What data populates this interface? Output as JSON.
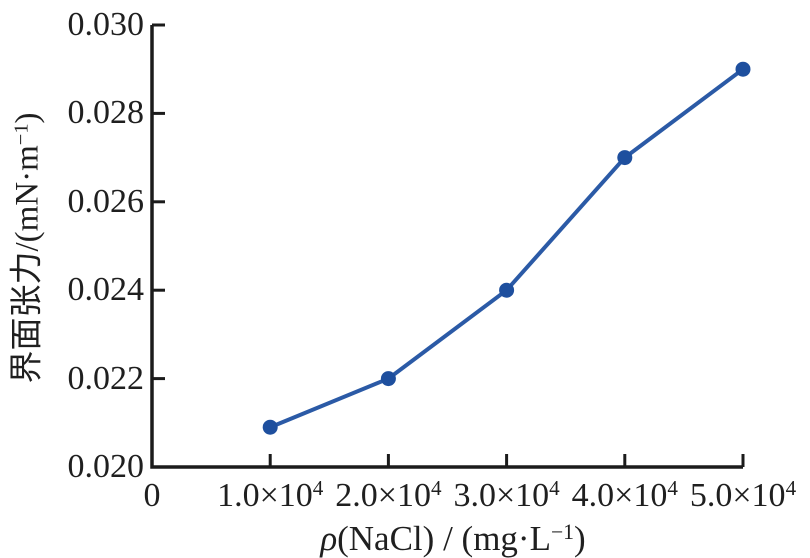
{
  "figure": {
    "background": "#ffffff"
  },
  "chart_data": {
    "type": "line",
    "title": "",
    "xlabel": "ρ(NaCl) / (mg·L⁻¹)",
    "ylabel": "界面张力/(mN·m⁻¹)",
    "x": [
      10000,
      20000,
      30000,
      40000,
      50000
    ],
    "y": [
      0.0209,
      0.022,
      0.024,
      0.027,
      0.029
    ],
    "xlim": [
      0,
      50000
    ],
    "ylim": [
      0.02,
      0.03
    ],
    "grid": false,
    "legend": "none",
    "marker": "circle",
    "line_color": "#2b5aa6",
    "marker_color": "#1e4f9e",
    "axis_color": "#1b1b1b",
    "text_color": "#1f1f1f",
    "xticks": [
      {
        "value": 0,
        "label": "0",
        "base": "0",
        "sup": ""
      },
      {
        "value": 10000,
        "label": "1.0×10⁴",
        "base": "1.0×10",
        "sup": "4"
      },
      {
        "value": 20000,
        "label": "2.0×10⁴",
        "base": "2.0×10",
        "sup": "4"
      },
      {
        "value": 30000,
        "label": "3.0×10⁴",
        "base": "3.0×10",
        "sup": "4"
      },
      {
        "value": 40000,
        "label": "4.0×10⁴",
        "base": "4.0×10",
        "sup": "4"
      },
      {
        "value": 50000,
        "label": "5.0×10⁴",
        "base": "5.0×10",
        "sup": "4"
      }
    ],
    "yticks": [
      {
        "value": 0.03,
        "label": "0.030"
      },
      {
        "value": 0.028,
        "label": "0.028"
      },
      {
        "value": 0.026,
        "label": "0.026"
      },
      {
        "value": 0.024,
        "label": "0.024"
      },
      {
        "value": 0.022,
        "label": "0.022"
      },
      {
        "value": 0.02,
        "label": "0.020"
      }
    ],
    "xlabel_parts": [
      {
        "t": "ρ",
        "i": true
      },
      {
        "t": "(NaCl) / (mg·L"
      },
      {
        "t": "−1",
        "sup": true
      },
      {
        "t": ")"
      }
    ],
    "ylabel_parts": [
      {
        "t": "界面张力/(mN·m"
      },
      {
        "t": "−1",
        "sup": true
      },
      {
        "t": ")"
      }
    ]
  }
}
